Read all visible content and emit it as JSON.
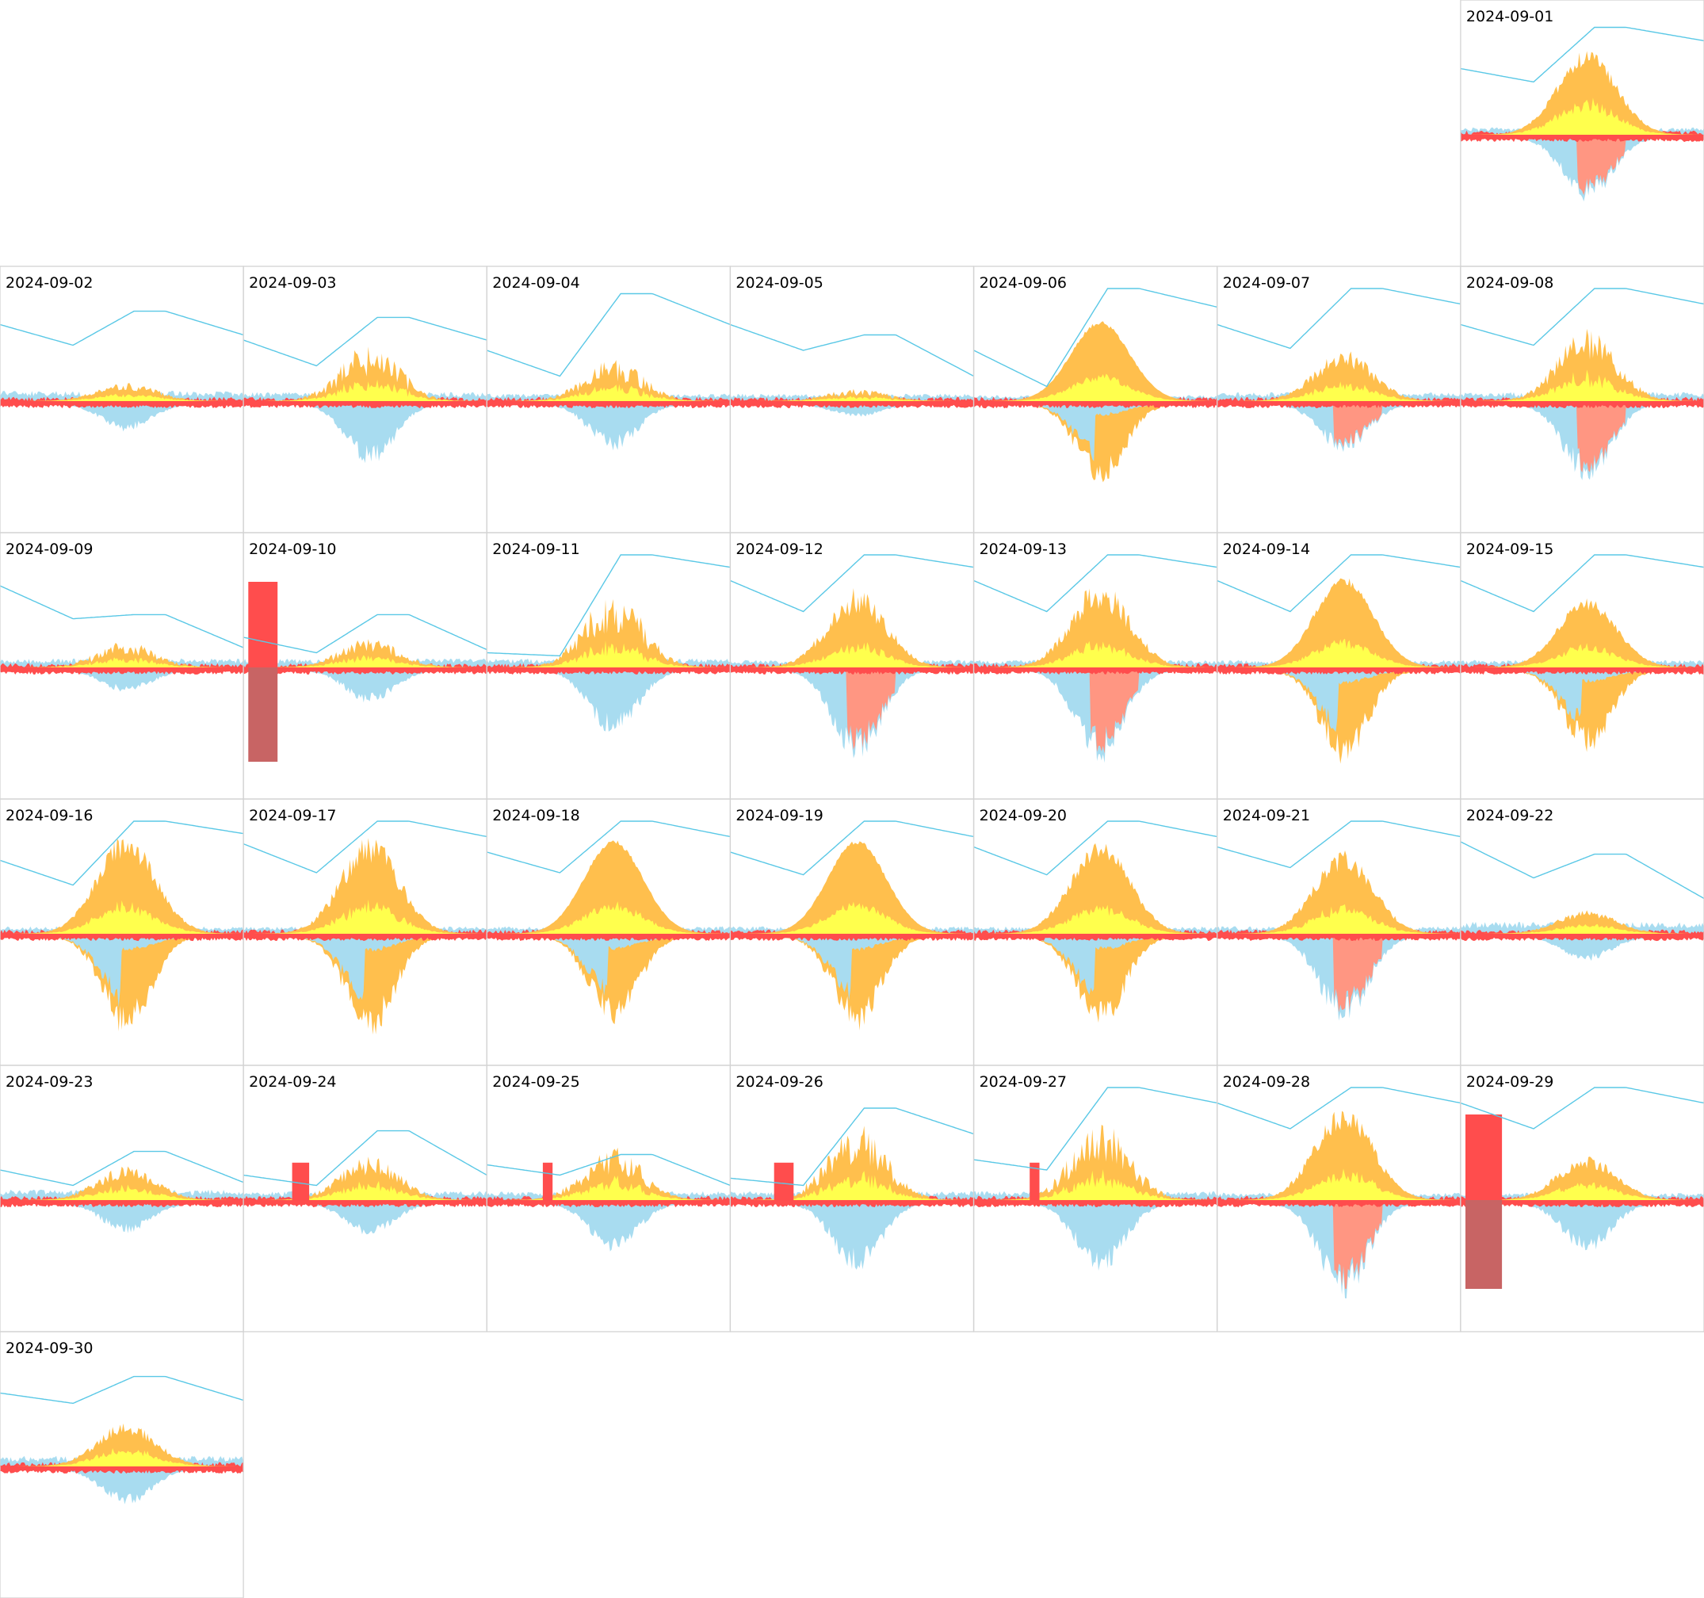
{
  "chart_data": {
    "type": "area",
    "layout": "calendar-grid",
    "columns": 7,
    "month": "2024-09",
    "first_weekday_column": 6,
    "colors": {
      "solar_generation": "#ffbf4d",
      "solar_self_use": "#ffff4d",
      "grid_import": "#ff4d4d",
      "grid_import_dark": "#c86464",
      "battery": "#a8dcf0",
      "battery_charge_from_grid": "#ff9682",
      "state_of_charge_line": "#5ac8e6",
      "cell_border": "#d3d3d3"
    },
    "days": [
      {
        "date": "2024-09-01",
        "solar_peak": 0.8,
        "solar_spike": 0.2,
        "self_frac": 0.38,
        "bat_up": 0.05,
        "cons_peak": 0.6,
        "cons_mode": "pink",
        "soc": [
          0.55,
          0.42,
          0.95,
          0.82
        ],
        "grid_block": null
      },
      {
        "date": "2024-09-02",
        "solar_peak": 0.18,
        "solar_spike": 0.5,
        "self_frac": 0.4,
        "bat_up": 0.07,
        "cons_peak": 0.25,
        "cons_mode": "blue",
        "soc": [
          0.65,
          0.45,
          0.78,
          0.55
        ],
        "grid_block": null
      },
      {
        "date": "2024-09-03",
        "solar_peak": 0.55,
        "solar_spike": 0.6,
        "self_frac": 0.4,
        "bat_up": 0.06,
        "cons_peak": 0.55,
        "cons_mode": "blue",
        "soc": [
          0.5,
          0.25,
          0.72,
          0.5
        ],
        "grid_block": null
      },
      {
        "date": "2024-09-04",
        "solar_peak": 0.4,
        "solar_spike": 0.55,
        "self_frac": 0.4,
        "bat_up": 0.05,
        "cons_peak": 0.42,
        "cons_mode": "blue",
        "soc": [
          0.4,
          0.15,
          0.95,
          0.65
        ],
        "grid_block": null
      },
      {
        "date": "2024-09-05",
        "solar_peak": 0.12,
        "solar_spike": 0.6,
        "self_frac": 0.4,
        "bat_up": 0.05,
        "cons_peak": 0.12,
        "cons_mode": "blue",
        "soc": [
          0.65,
          0.4,
          0.55,
          0.15
        ],
        "grid_block": null
      },
      {
        "date": "2024-09-06",
        "solar_peak": 0.75,
        "solar_spike": 0.05,
        "self_frac": 0.3,
        "bat_up": 0.04,
        "cons_peak": 0.75,
        "cons_mode": "orange",
        "soc": [
          0.4,
          0.05,
          1.0,
          0.82
        ],
        "grid_block": null
      },
      {
        "date": "2024-09-07",
        "solar_peak": 0.48,
        "solar_spike": 0.35,
        "self_frac": 0.35,
        "bat_up": 0.06,
        "cons_peak": 0.45,
        "cons_mode": "pink",
        "soc": [
          0.65,
          0.42,
          1.0,
          0.85
        ],
        "grid_block": null
      },
      {
        "date": "2024-09-08",
        "solar_peak": 0.7,
        "solar_spike": 0.45,
        "self_frac": 0.38,
        "bat_up": 0.06,
        "cons_peak": 0.7,
        "cons_mode": "pink",
        "soc": [
          0.65,
          0.45,
          1.0,
          0.85
        ],
        "grid_block": null
      },
      {
        "date": "2024-09-09",
        "solar_peak": 0.25,
        "solar_spike": 0.6,
        "self_frac": 0.4,
        "bat_up": 0.06,
        "cons_peak": 0.2,
        "cons_mode": "blue",
        "soc": [
          0.7,
          0.38,
          0.42,
          0.1
        ],
        "grid_block": null
      },
      {
        "date": "2024-09-10",
        "solar_peak": 0.28,
        "solar_spike": 0.5,
        "self_frac": 0.4,
        "bat_up": 0.06,
        "cons_peak": 0.3,
        "cons_mode": "blue",
        "soc": [
          0.2,
          0.05,
          0.42,
          0.08
        ],
        "grid_block": {
          "start": 0.02,
          "end": 0.14,
          "up": 0.8,
          "down": 0.85
        }
      },
      {
        "date": "2024-09-11",
        "solar_peak": 0.72,
        "solar_spike": 0.55,
        "self_frac": 0.35,
        "bat_up": 0.06,
        "cons_peak": 0.6,
        "cons_mode": "blue",
        "soc": [
          0.05,
          0.02,
          1.0,
          0.88
        ],
        "grid_block": null
      },
      {
        "date": "2024-09-12",
        "solar_peak": 0.75,
        "solar_spike": 0.35,
        "self_frac": 0.3,
        "bat_up": 0.05,
        "cons_peak": 0.85,
        "cons_mode": "pink",
        "soc": [
          0.75,
          0.45,
          1.0,
          0.88
        ],
        "grid_block": null
      },
      {
        "date": "2024-09-13",
        "solar_peak": 0.82,
        "solar_spike": 0.35,
        "self_frac": 0.3,
        "bat_up": 0.05,
        "cons_peak": 0.85,
        "cons_mode": "pink",
        "soc": [
          0.75,
          0.45,
          1.0,
          0.88
        ],
        "grid_block": null
      },
      {
        "date": "2024-09-14",
        "solar_peak": 0.85,
        "solar_spike": 0.1,
        "self_frac": 0.28,
        "bat_up": 0.05,
        "cons_peak": 0.85,
        "cons_mode": "orange",
        "soc": [
          0.75,
          0.45,
          1.0,
          0.88
        ],
        "grid_block": null
      },
      {
        "date": "2024-09-15",
        "solar_peak": 0.65,
        "solar_spike": 0.2,
        "self_frac": 0.3,
        "bat_up": 0.05,
        "cons_peak": 0.75,
        "cons_mode": "orange",
        "soc": [
          0.75,
          0.45,
          1.0,
          0.88
        ],
        "grid_block": null
      },
      {
        "date": "2024-09-16",
        "solar_peak": 0.95,
        "solar_spike": 0.25,
        "self_frac": 0.3,
        "bat_up": 0.05,
        "cons_peak": 0.9,
        "cons_mode": "orange",
        "soc": [
          0.62,
          0.38,
          1.0,
          0.88
        ],
        "grid_block": null
      },
      {
        "date": "2024-09-17",
        "solar_peak": 0.92,
        "solar_spike": 0.3,
        "self_frac": 0.3,
        "bat_up": 0.05,
        "cons_peak": 0.92,
        "cons_mode": "orange",
        "soc": [
          0.78,
          0.5,
          1.0,
          0.85
        ],
        "grid_block": null
      },
      {
        "date": "2024-09-18",
        "solar_peak": 0.88,
        "solar_spike": 0.05,
        "self_frac": 0.3,
        "bat_up": 0.05,
        "cons_peak": 0.82,
        "cons_mode": "orange",
        "soc": [
          0.7,
          0.5,
          1.0,
          0.85
        ],
        "grid_block": null
      },
      {
        "date": "2024-09-19",
        "solar_peak": 0.88,
        "solar_spike": 0.05,
        "self_frac": 0.3,
        "bat_up": 0.05,
        "cons_peak": 0.85,
        "cons_mode": "orange",
        "soc": [
          0.7,
          0.48,
          1.0,
          0.85
        ],
        "grid_block": null
      },
      {
        "date": "2024-09-20",
        "solar_peak": 0.88,
        "solar_spike": 0.2,
        "self_frac": 0.3,
        "bat_up": 0.05,
        "cons_peak": 0.85,
        "cons_mode": "orange",
        "soc": [
          0.75,
          0.48,
          1.0,
          0.85
        ],
        "grid_block": null
      },
      {
        "date": "2024-09-21",
        "solar_peak": 0.78,
        "solar_spike": 0.25,
        "self_frac": 0.32,
        "bat_up": 0.05,
        "cons_peak": 0.8,
        "cons_mode": "pink",
        "soc": [
          0.75,
          0.55,
          1.0,
          0.85
        ],
        "grid_block": null
      },
      {
        "date": "2024-09-22",
        "solar_peak": 0.22,
        "solar_spike": 0.3,
        "self_frac": 0.4,
        "bat_up": 0.08,
        "cons_peak": 0.22,
        "cons_mode": "blue",
        "soc": [
          0.8,
          0.45,
          0.68,
          0.25
        ],
        "grid_block": null
      },
      {
        "date": "2024-09-23",
        "solar_peak": 0.32,
        "solar_spike": 0.4,
        "self_frac": 0.4,
        "bat_up": 0.07,
        "cons_peak": 0.28,
        "cons_mode": "blue",
        "soc": [
          0.2,
          0.05,
          0.38,
          0.08
        ],
        "grid_block": null
      },
      {
        "date": "2024-09-24",
        "solar_peak": 0.42,
        "solar_spike": 0.45,
        "self_frac": 0.4,
        "bat_up": 0.06,
        "cons_peak": 0.3,
        "cons_mode": "blue",
        "soc": [
          0.15,
          0.05,
          0.58,
          0.15
        ],
        "grid_block": {
          "start": 0.2,
          "end": 0.27,
          "up": 0.35,
          "down": 0.0
        }
      },
      {
        "date": "2024-09-25",
        "solar_peak": 0.5,
        "solar_spike": 0.55,
        "self_frac": 0.4,
        "bat_up": 0.06,
        "cons_peak": 0.45,
        "cons_mode": "blue",
        "soc": [
          0.25,
          0.15,
          0.35,
          0.05
        ],
        "grid_block": {
          "start": 0.23,
          "end": 0.27,
          "up": 0.35,
          "down": 0.0
        }
      },
      {
        "date": "2024-09-26",
        "solar_peak": 0.72,
        "solar_spike": 0.55,
        "self_frac": 0.35,
        "bat_up": 0.06,
        "cons_peak": 0.62,
        "cons_mode": "blue",
        "soc": [
          0.12,
          0.05,
          0.8,
          0.55
        ],
        "grid_block": {
          "start": 0.18,
          "end": 0.26,
          "up": 0.35,
          "down": 0.0
        }
      },
      {
        "date": "2024-09-27",
        "solar_peak": 0.75,
        "solar_spike": 0.55,
        "self_frac": 0.35,
        "bat_up": 0.06,
        "cons_peak": 0.65,
        "cons_mode": "blue",
        "soc": [
          0.3,
          0.2,
          1.0,
          0.85
        ],
        "grid_block": {
          "start": 0.23,
          "end": 0.27,
          "up": 0.35,
          "down": 0.0
        }
      },
      {
        "date": "2024-09-28",
        "solar_peak": 0.88,
        "solar_spike": 0.25,
        "self_frac": 0.3,
        "bat_up": 0.05,
        "cons_peak": 0.88,
        "cons_mode": "pink",
        "soc": [
          0.85,
          0.6,
          1.0,
          0.85
        ],
        "grid_block": null
      },
      {
        "date": "2024-09-29",
        "solar_peak": 0.42,
        "solar_spike": 0.3,
        "self_frac": 0.4,
        "bat_up": 0.05,
        "cons_peak": 0.45,
        "cons_mode": "blue",
        "soc": [
          0.85,
          0.6,
          1.0,
          0.85
        ],
        "grid_block": {
          "start": 0.02,
          "end": 0.17,
          "up": 0.8,
          "down": 0.8
        }
      },
      {
        "date": "2024-09-30",
        "solar_peak": 0.42,
        "solar_spike": 0.3,
        "self_frac": 0.4,
        "bat_up": 0.07,
        "cons_peak": 0.33,
        "cons_mode": "blue",
        "soc": [
          0.62,
          0.52,
          0.78,
          0.55
        ],
        "grid_block": null
      }
    ]
  }
}
